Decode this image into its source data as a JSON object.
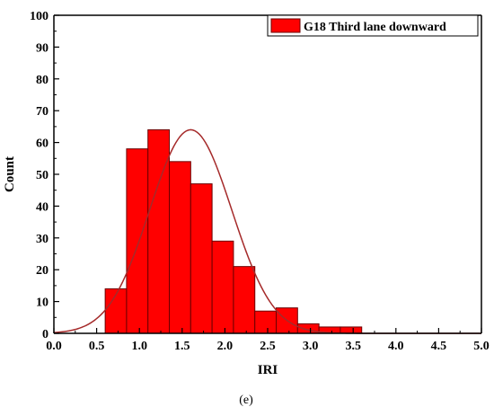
{
  "chart_data": {
    "type": "bar",
    "subtype": "histogram-with-normal-fit",
    "caption": "(e)",
    "xlabel": "IRI",
    "ylabel": "Count",
    "xlim": [
      0.0,
      5.0
    ],
    "ylim": [
      0,
      100
    ],
    "x_ticks": [
      "0.0",
      "0.5",
      "1.0",
      "1.5",
      "2.0",
      "2.5",
      "3.0",
      "3.5",
      "4.0",
      "4.5",
      "5.0"
    ],
    "y_ticks": [
      "0",
      "10",
      "20",
      "30",
      "40",
      "50",
      "60",
      "70",
      "80",
      "90",
      "100"
    ],
    "grid": false,
    "legend_position": "top-right",
    "legend_label": "G18 Third lane downward",
    "bin_width": 0.25,
    "bins": [
      {
        "x0": 0.6,
        "x1": 0.85,
        "count": 14
      },
      {
        "x0": 0.85,
        "x1": 1.1,
        "count": 58
      },
      {
        "x0": 1.1,
        "x1": 1.35,
        "count": 64
      },
      {
        "x0": 1.35,
        "x1": 1.6,
        "count": 54
      },
      {
        "x0": 1.6,
        "x1": 1.85,
        "count": 47
      },
      {
        "x0": 1.85,
        "x1": 2.1,
        "count": 29
      },
      {
        "x0": 2.1,
        "x1": 2.35,
        "count": 21
      },
      {
        "x0": 2.35,
        "x1": 2.6,
        "count": 7
      },
      {
        "x0": 2.6,
        "x1": 2.85,
        "count": 8
      },
      {
        "x0": 2.85,
        "x1": 3.1,
        "count": 3
      },
      {
        "x0": 3.1,
        "x1": 3.35,
        "count": 2
      },
      {
        "x0": 3.35,
        "x1": 3.6,
        "count": 2
      }
    ],
    "normal_fit": {
      "mean": 1.6,
      "std": 0.48,
      "peak": 64,
      "x_range": [
        0.0,
        5.0
      ]
    },
    "colors": {
      "bar_fill": "#ff0000",
      "bar_stroke": "#6b0000",
      "fit_line": "#a52a2a",
      "axis": "#000000"
    }
  }
}
